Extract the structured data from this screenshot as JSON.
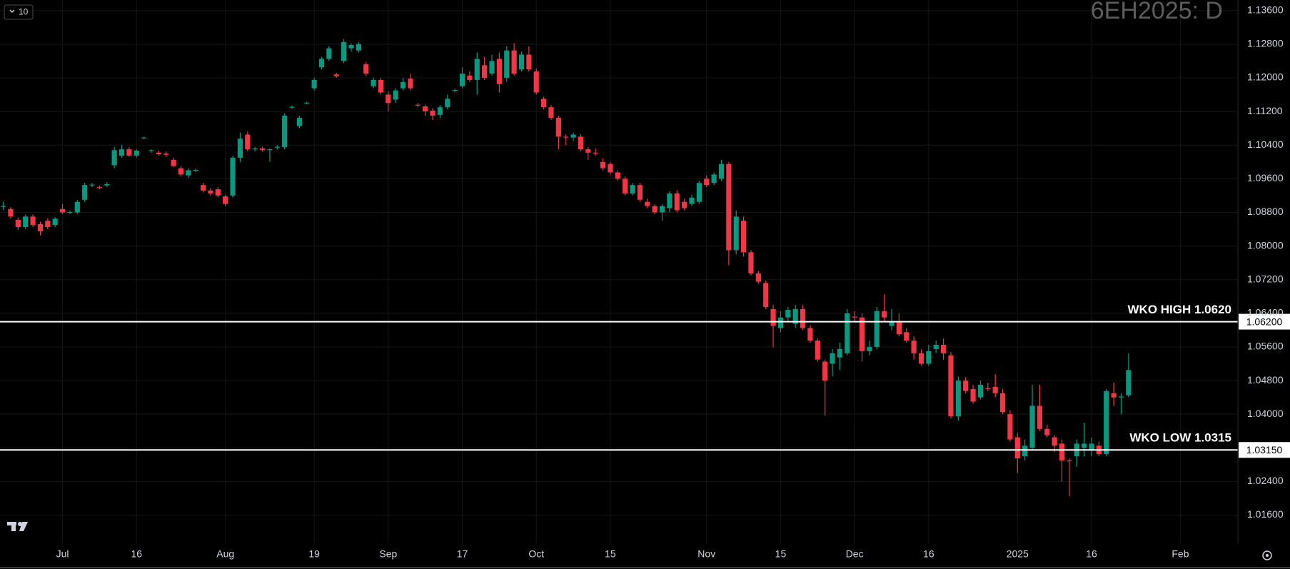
{
  "chart_data": {
    "type": "candlestick",
    "watermark": "6EH2025: D",
    "badge": "10",
    "up_color": "#089981",
    "down_color": "#f23645",
    "grid": true,
    "ylim": [
      1.0093,
      1.1385
    ],
    "yticks": [
      {
        "value": 1.016,
        "label": "1.01600"
      },
      {
        "value": 1.024,
        "label": "1.02400"
      },
      {
        "value": 1.04,
        "label": "1.04000"
      },
      {
        "value": 1.048,
        "label": "1.04800"
      },
      {
        "value": 1.056,
        "label": "1.05600"
      },
      {
        "value": 1.064,
        "label": "1.06400"
      },
      {
        "value": 1.072,
        "label": "1.07200"
      },
      {
        "value": 1.08,
        "label": "1.08000"
      },
      {
        "value": 1.088,
        "label": "1.08800"
      },
      {
        "value": 1.096,
        "label": "1.09600"
      },
      {
        "value": 1.104,
        "label": "1.10400"
      },
      {
        "value": 1.112,
        "label": "1.11200"
      },
      {
        "value": 1.12,
        "label": "1.12000"
      },
      {
        "value": 1.128,
        "label": "1.12800"
      },
      {
        "value": 1.136,
        "label": "1.13600"
      }
    ],
    "hlines": [
      {
        "label": "WKO HIGH 1.0620",
        "value": 1.062,
        "price_label": "1.06200"
      },
      {
        "label": "WKO LOW 1.0315",
        "value": 1.0315,
        "price_label": "1.03150"
      }
    ],
    "categories": [
      null,
      null,
      null,
      null,
      null,
      null,
      null,
      null,
      "Jul",
      null,
      null,
      null,
      null,
      null,
      null,
      null,
      null,
      null,
      "16",
      null,
      null,
      null,
      null,
      null,
      null,
      null,
      null,
      null,
      null,
      null,
      "Aug",
      null,
      null,
      null,
      null,
      null,
      null,
      null,
      null,
      null,
      null,
      null,
      "19",
      null,
      null,
      null,
      null,
      null,
      null,
      null,
      null,
      null,
      "Sep",
      null,
      null,
      null,
      null,
      null,
      null,
      null,
      null,
      null,
      "17",
      null,
      null,
      null,
      null,
      null,
      null,
      null,
      null,
      null,
      "Oct",
      null,
      null,
      null,
      null,
      null,
      null,
      null,
      null,
      null,
      "15",
      null,
      null,
      null,
      null,
      null,
      null,
      null,
      null,
      null,
      null,
      null,
      null,
      "Nov",
      null,
      null,
      null,
      null,
      null,
      null,
      null,
      null,
      null,
      "15",
      null,
      null,
      null,
      null,
      null,
      null,
      null,
      null,
      null,
      "Dec",
      null,
      null,
      null,
      null,
      null,
      null,
      null,
      null,
      null,
      "16",
      null,
      null,
      null,
      null,
      null,
      null,
      null,
      null,
      null,
      null,
      null,
      "2025",
      null,
      null,
      null,
      null,
      null,
      null,
      null,
      null,
      null,
      "16",
      null,
      null,
      null,
      null,
      null,
      null,
      null,
      null,
      null,
      null,
      null,
      "Feb"
    ],
    "candles": [
      [
        1.0893,
        1.0905,
        1.0885,
        1.0895
      ],
      [
        1.0888,
        1.0892,
        1.0865,
        1.087
      ],
      [
        1.0862,
        1.0868,
        1.0838,
        1.0845
      ],
      [
        1.0845,
        1.0875,
        1.084,
        1.087
      ],
      [
        1.087,
        1.0875,
        1.0845,
        1.085
      ],
      [
        1.0852,
        1.0858,
        1.0825,
        1.0835
      ],
      [
        1.086,
        1.0866,
        1.084,
        1.0845
      ],
      [
        1.085,
        1.0868,
        1.0845,
        1.0865
      ],
      [
        1.0888,
        1.09,
        1.0876,
        1.088
      ],
      [
        1.088,
        1.0884,
        1.0876,
        1.0881
      ],
      [
        1.088,
        1.091,
        1.0876,
        1.0905
      ],
      [
        1.091,
        1.095,
        1.0905,
        1.0945
      ],
      [
        1.0945,
        1.095,
        1.094,
        1.0946
      ],
      [
        1.094,
        1.0944,
        1.0935,
        1.0939
      ],
      [
        1.0944,
        1.0952,
        1.094,
        1.0947
      ],
      [
        1.0992,
        1.1035,
        1.0985,
        1.1028
      ],
      [
        1.1015,
        1.104,
        1.101,
        1.103
      ],
      [
        1.103,
        1.1035,
        1.1012,
        1.1015
      ],
      [
        1.1015,
        1.103,
        1.101,
        1.1027
      ],
      [
        1.1057,
        1.106,
        1.1054,
        1.1058
      ],
      [
        1.1027,
        1.103,
        1.1022,
        1.1028
      ],
      [
        1.1022,
        1.1026,
        1.1015,
        1.1018
      ],
      [
        1.102,
        1.1025,
        1.1012,
        1.1017
      ],
      [
        1.1005,
        1.101,
        1.0988,
        1.099
      ],
      [
        1.0985,
        1.099,
        1.0965,
        1.097
      ],
      [
        1.0968,
        1.0985,
        1.0962,
        1.098
      ],
      [
        1.098,
        1.0984,
        1.0976,
        1.0981
      ],
      [
        1.0945,
        1.095,
        1.0928,
        1.0932
      ],
      [
        1.0932,
        1.0938,
        1.092,
        1.0925
      ],
      [
        1.0935,
        1.094,
        1.0915,
        1.092
      ],
      [
        1.0918,
        1.0922,
        1.0895,
        1.09
      ],
      [
        1.092,
        1.1015,
        1.0915,
        1.101
      ],
      [
        1.101,
        1.107,
        1.1,
        1.1055
      ],
      [
        1.1065,
        1.1072,
        1.1025,
        1.103
      ],
      [
        1.103,
        1.1036,
        1.1025,
        1.1032
      ],
      [
        1.1032,
        1.1036,
        1.1024,
        1.1028
      ],
      [
        1.1028,
        1.1032,
        1.1,
        1.103
      ],
      [
        1.1035,
        1.104,
        1.103,
        1.1036
      ],
      [
        1.1035,
        1.1115,
        1.103,
        1.111
      ],
      [
        1.113,
        1.1134,
        1.1126,
        1.1131
      ],
      [
        1.1085,
        1.111,
        1.108,
        1.1105
      ],
      [
        1.114,
        1.1143,
        1.1137,
        1.1141
      ],
      [
        1.1175,
        1.12,
        1.117,
        1.1195
      ],
      [
        1.1225,
        1.125,
        1.122,
        1.1245
      ],
      [
        1.1245,
        1.1275,
        1.124,
        1.127
      ],
      [
        1.1208,
        1.1212,
        1.12,
        1.1204
      ],
      [
        1.124,
        1.1292,
        1.1235,
        1.1285
      ],
      [
        1.127,
        1.1282,
        1.1262,
        1.1278
      ],
      [
        1.1265,
        1.1285,
        1.126,
        1.128
      ],
      [
        1.1232,
        1.1238,
        1.1205,
        1.121
      ],
      [
        1.118,
        1.12,
        1.1175,
        1.1195
      ],
      [
        1.1195,
        1.12,
        1.116,
        1.1165
      ],
      [
        1.116,
        1.1168,
        1.112,
        1.114
      ],
      [
        1.1148,
        1.1175,
        1.114,
        1.117
      ],
      [
        1.1175,
        1.12,
        1.117,
        1.119
      ],
      [
        1.1198,
        1.121,
        1.117,
        1.1175
      ],
      [
        1.1136,
        1.114,
        1.113,
        1.1134
      ],
      [
        1.1132,
        1.1136,
        1.111,
        1.112
      ],
      [
        1.1122,
        1.1128,
        1.11,
        1.111
      ],
      [
        1.1112,
        1.1135,
        1.1105,
        1.113
      ],
      [
        1.113,
        1.116,
        1.1125,
        1.115
      ],
      [
        1.117,
        1.1174,
        1.1166,
        1.1171
      ],
      [
        1.118,
        1.1225,
        1.1175,
        1.121
      ],
      [
        1.1205,
        1.1215,
        1.119,
        1.1195
      ],
      [
        1.1195,
        1.126,
        1.116,
        1.1245
      ],
      [
        1.123,
        1.125,
        1.1195,
        1.12
      ],
      [
        1.121,
        1.1255,
        1.1205,
        1.124
      ],
      [
        1.1245,
        1.126,
        1.1165,
        1.1185
      ],
      [
        1.12,
        1.1275,
        1.119,
        1.1265
      ],
      [
        1.1265,
        1.1282,
        1.1205,
        1.121
      ],
      [
        1.122,
        1.1262,
        1.1215,
        1.1255
      ],
      [
        1.1255,
        1.1275,
        1.1215,
        1.122
      ],
      [
        1.1215,
        1.1222,
        1.116,
        1.1165
      ],
      [
        1.115,
        1.1155,
        1.1125,
        1.113
      ],
      [
        1.113,
        1.1135,
        1.11,
        1.1105
      ],
      [
        1.1105,
        1.111,
        1.103,
        1.106
      ],
      [
        1.106,
        1.1065,
        1.104,
        1.1058
      ],
      [
        1.1058,
        1.107,
        1.105,
        1.1065
      ],
      [
        1.106,
        1.1066,
        1.1025,
        1.103
      ],
      [
        1.103,
        1.1036,
        1.1005,
        1.1022
      ],
      [
        1.1022,
        1.1032,
        1.1015,
        1.102
      ],
      [
        1.1,
        1.1008,
        1.098,
        1.0985
      ],
      [
        1.0995,
        1.1,
        1.097,
        1.0975
      ],
      [
        1.0975,
        1.098,
        1.0955,
        1.096
      ],
      [
        1.096,
        1.0965,
        1.092,
        1.0925
      ],
      [
        1.0925,
        1.095,
        1.092,
        1.0945
      ],
      [
        1.0945,
        1.095,
        1.0905,
        1.091
      ],
      [
        1.0905,
        1.0912,
        1.089,
        1.0895
      ],
      [
        1.0895,
        1.09,
        1.0875,
        1.088
      ],
      [
        1.088,
        1.09,
        1.086,
        1.0895
      ],
      [
        1.089,
        1.093,
        1.088,
        1.0925
      ],
      [
        1.0925,
        1.0932,
        1.088,
        1.0885
      ],
      [
        1.0905,
        1.0912,
        1.0885,
        1.089
      ],
      [
        1.09,
        1.0922,
        1.0895,
        1.0915
      ],
      [
        1.0905,
        1.0955,
        1.09,
        1.095
      ],
      [
        1.096,
        1.0968,
        1.094,
        1.0945
      ],
      [
        1.095,
        1.0975,
        1.0945,
        1.097
      ],
      [
        1.096,
        1.1005,
        1.0955,
        1.0995
      ],
      [
        1.0995,
        1.1,
        1.0755,
        1.079
      ],
      [
        1.079,
        1.0885,
        1.078,
        1.087
      ],
      [
        1.086,
        1.087,
        1.0775,
        1.0785
      ],
      [
        1.0785,
        1.079,
        1.073,
        1.0735
      ],
      [
        1.0735,
        1.074,
        1.071,
        1.0715
      ],
      [
        1.0712,
        1.0718,
        1.065,
        1.0655
      ],
      [
        1.065,
        1.066,
        1.0559,
        1.061
      ],
      [
        1.0605,
        1.0645,
        1.0595,
        1.063
      ],
      [
        1.063,
        1.0655,
        1.062,
        1.0648
      ],
      [
        1.0615,
        1.066,
        1.0605,
        1.065
      ],
      [
        1.065,
        1.066,
        1.06,
        1.0605
      ],
      [
        1.0605,
        1.0612,
        1.057,
        1.0575
      ],
      [
        1.0575,
        1.058,
        1.0525,
        1.053
      ],
      [
        1.0525,
        1.053,
        1.0397,
        1.048
      ],
      [
        1.052,
        1.0555,
        1.049,
        1.0545
      ],
      [
        1.0535,
        1.057,
        1.0505,
        1.0555
      ],
      [
        1.0545,
        1.065,
        1.054,
        1.064
      ],
      [
        1.0632,
        1.0645,
        1.062,
        1.063
      ],
      [
        1.063,
        1.064,
        1.0525,
        1.055
      ],
      [
        1.055,
        1.0575,
        1.054,
        1.056
      ],
      [
        1.056,
        1.0655,
        1.0555,
        1.0645
      ],
      [
        1.0645,
        1.0685,
        1.062,
        1.063
      ],
      [
        1.061,
        1.065,
        1.06,
        1.062
      ],
      [
        1.062,
        1.064,
        1.0585,
        1.059
      ],
      [
        1.0595,
        1.0605,
        1.057,
        1.0575
      ],
      [
        1.0575,
        1.0585,
        1.053,
        1.0545
      ],
      [
        1.0545,
        1.0555,
        1.0515,
        1.052
      ],
      [
        1.052,
        1.0565,
        1.0515,
        1.055
      ],
      [
        1.0555,
        1.0575,
        1.0545,
        1.0565
      ],
      [
        1.0565,
        1.058,
        1.053,
        1.0545
      ],
      [
        1.054,
        1.0548,
        1.039,
        1.0395
      ],
      [
        1.0395,
        1.049,
        1.0385,
        1.048
      ],
      [
        1.048,
        1.0488,
        1.045,
        1.0455
      ],
      [
        1.046,
        1.047,
        1.0425,
        1.043
      ],
      [
        1.044,
        1.048,
        1.0435,
        1.047
      ],
      [
        1.0462,
        1.0475,
        1.0455,
        1.046
      ],
      [
        1.0465,
        1.0495,
        1.044,
        1.045
      ],
      [
        1.045,
        1.046,
        1.04,
        1.0405
      ],
      [
        1.04,
        1.041,
        1.0335,
        1.034
      ],
      [
        1.0345,
        1.0355,
        1.026,
        1.0295
      ],
      [
        1.03,
        1.034,
        1.029,
        1.0325
      ],
      [
        1.032,
        1.047,
        1.0315,
        1.042
      ],
      [
        1.042,
        1.047,
        1.036,
        1.0365
      ],
      [
        1.0365,
        1.0375,
        1.0345,
        1.035
      ],
      [
        1.0345,
        1.035,
        1.031,
        1.0325
      ],
      [
        1.033,
        1.034,
        1.024,
        1.029
      ],
      [
        1.029,
        1.0295,
        1.0205,
        1.0288
      ],
      [
        1.03,
        1.034,
        1.0275,
        1.033
      ],
      [
        1.032,
        1.038,
        1.03,
        1.033
      ],
      [
        1.0315,
        1.0345,
        1.03,
        1.033
      ],
      [
        1.0325,
        1.0335,
        1.03,
        1.0305
      ],
      [
        1.0305,
        1.046,
        1.03,
        1.0455
      ],
      [
        1.045,
        1.0475,
        1.042,
        1.044
      ],
      [
        1.044,
        1.045,
        1.04,
        1.0442
      ],
      [
        1.0445,
        1.0545,
        1.044,
        1.0505
      ],
      null,
      null,
      null,
      null,
      null,
      null,
      null
    ]
  }
}
